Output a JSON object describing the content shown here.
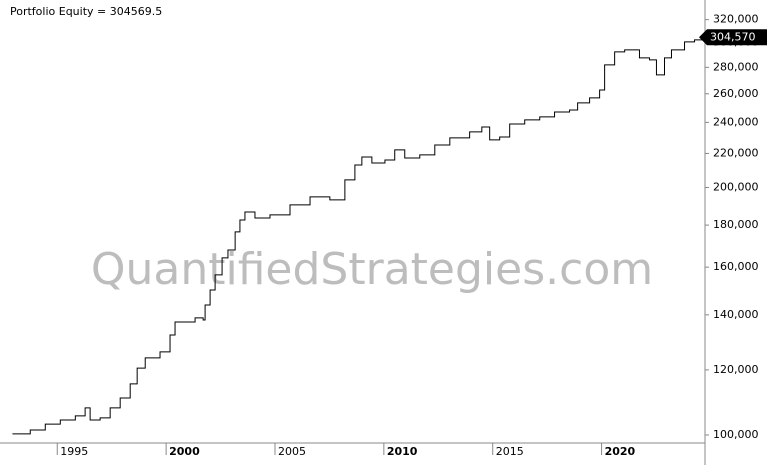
{
  "chart_data": {
    "type": "line",
    "title": "Portfolio Equity = 304569.5",
    "watermark": "QuantifiedStrategies.com",
    "step": true,
    "log_y": true,
    "grid": false,
    "series": [
      {
        "name": "Portfolio Equity",
        "color": "#000000",
        "x": [
          1992.94,
          1993.76,
          1994.45,
          1995.14,
          1995.83,
          1996.28,
          1996.51,
          1996.97,
          1997.43,
          1997.89,
          1998.35,
          1998.67,
          1999.04,
          1999.72,
          2000.18,
          2000.41,
          2000.87,
          2001.33,
          2001.7,
          2001.79,
          2002.02,
          2002.25,
          2002.57,
          2002.84,
          2003.17,
          2003.39,
          2003.62,
          2004.08,
          2004.77,
          2005.69,
          2006.61,
          2007.52,
          2008.21,
          2008.67,
          2008.99,
          2009.45,
          2010.05,
          2010.5,
          2010.96,
          2011.65,
          2012.34,
          2013.03,
          2013.94,
          2014.5,
          2014.86,
          2015.32,
          2015.78,
          2016.47,
          2017.16,
          2017.84,
          2018.53,
          2018.9,
          2019.45,
          2019.91,
          2020.14,
          2020.6,
          2021.06,
          2021.74,
          2022.2,
          2022.52,
          2022.89,
          2023.21,
          2023.81,
          2024.27,
          2024.72
        ],
        "values": [
          100300,
          101400,
          103100,
          104300,
          105500,
          107900,
          104300,
          104900,
          107900,
          110900,
          115400,
          120600,
          124100,
          126200,
          132300,
          137200,
          137200,
          138800,
          138000,
          143900,
          150100,
          156600,
          164200,
          167900,
          176600,
          182600,
          186700,
          183600,
          185200,
          190500,
          194800,
          193200,
          204300,
          213000,
          217800,
          214200,
          216000,
          222200,
          217200,
          219100,
          225300,
          229800,
          233700,
          236900,
          228500,
          230400,
          238900,
          241700,
          243700,
          247100,
          248500,
          253500,
          257000,
          262800,
          281900,
          292400,
          294000,
          287500,
          285900,
          274100,
          287500,
          294000,
          300700,
          302400,
          304569.5
        ]
      }
    ],
    "last_value_label": "304,570",
    "xlim": [
      1992.6,
      2024.75
    ],
    "xticks": [
      1995,
      2000,
      2005,
      2010,
      2015,
      2020
    ],
    "ylim": [
      97780,
      333400
    ],
    "yticks": [
      {
        "value": 100000,
        "label": "100,000"
      },
      {
        "value": 120000,
        "label": "120,000"
      },
      {
        "value": 140000,
        "label": "140,000"
      },
      {
        "value": 160000,
        "label": "160,000"
      },
      {
        "value": 180000,
        "label": "180,000"
      },
      {
        "value": 200000,
        "label": "200,000"
      },
      {
        "value": 220000,
        "label": "220,000"
      },
      {
        "value": 240000,
        "label": "240,000"
      },
      {
        "value": 260000,
        "label": "260,000"
      },
      {
        "value": 280000,
        "label": "280,000"
      },
      {
        "value": 300000,
        "label": "300,000"
      },
      {
        "value": 320000,
        "label": "320,000"
      }
    ]
  }
}
